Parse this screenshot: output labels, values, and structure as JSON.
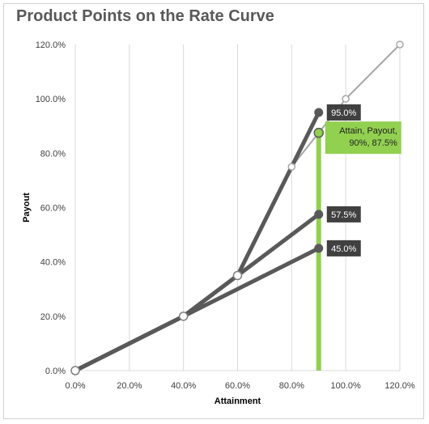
{
  "chart_data": {
    "type": "line",
    "title": "Product Points on the Rate Curve",
    "xlabel": "Attainment",
    "ylabel": "Payout",
    "xlim": [
      0,
      120
    ],
    "ylim": [
      0,
      120
    ],
    "x_ticks": [
      "0.0%",
      "20.0%",
      "40.0%",
      "60.0%",
      "80.0%",
      "100.0%",
      "120.0%"
    ],
    "y_ticks": [
      "0.0%",
      "20.0%",
      "40.0%",
      "60.0%",
      "80.0%",
      "100.0%",
      "120.0%"
    ],
    "grid": "vertical",
    "series": [
      {
        "style": "rate-curve",
        "color": "#a6a6a6",
        "points": [
          [
            0,
            0
          ],
          [
            40,
            20
          ],
          [
            60,
            35
          ],
          [
            80,
            75
          ],
          [
            100,
            100
          ],
          [
            120,
            120
          ]
        ]
      },
      {
        "style": "product",
        "color": "#595959",
        "points": [
          [
            0,
            0
          ],
          [
            40,
            20
          ],
          [
            60,
            35
          ],
          [
            90,
            95
          ]
        ],
        "label": "95.0%"
      },
      {
        "style": "product",
        "color": "#595959",
        "points": [
          [
            0,
            0
          ],
          [
            40,
            20
          ],
          [
            60,
            35
          ],
          [
            90,
            57.5
          ]
        ],
        "label": "57.5%"
      },
      {
        "style": "product",
        "color": "#595959",
        "points": [
          [
            0,
            0
          ],
          [
            40,
            20
          ],
          [
            90,
            45
          ]
        ],
        "label": "45.0%"
      }
    ],
    "attain_marker": {
      "x": 90,
      "y": 87.5,
      "color": "#92d050",
      "label_lines": [
        "Attain, Payout,",
        "90%, 87.5%"
      ]
    }
  }
}
